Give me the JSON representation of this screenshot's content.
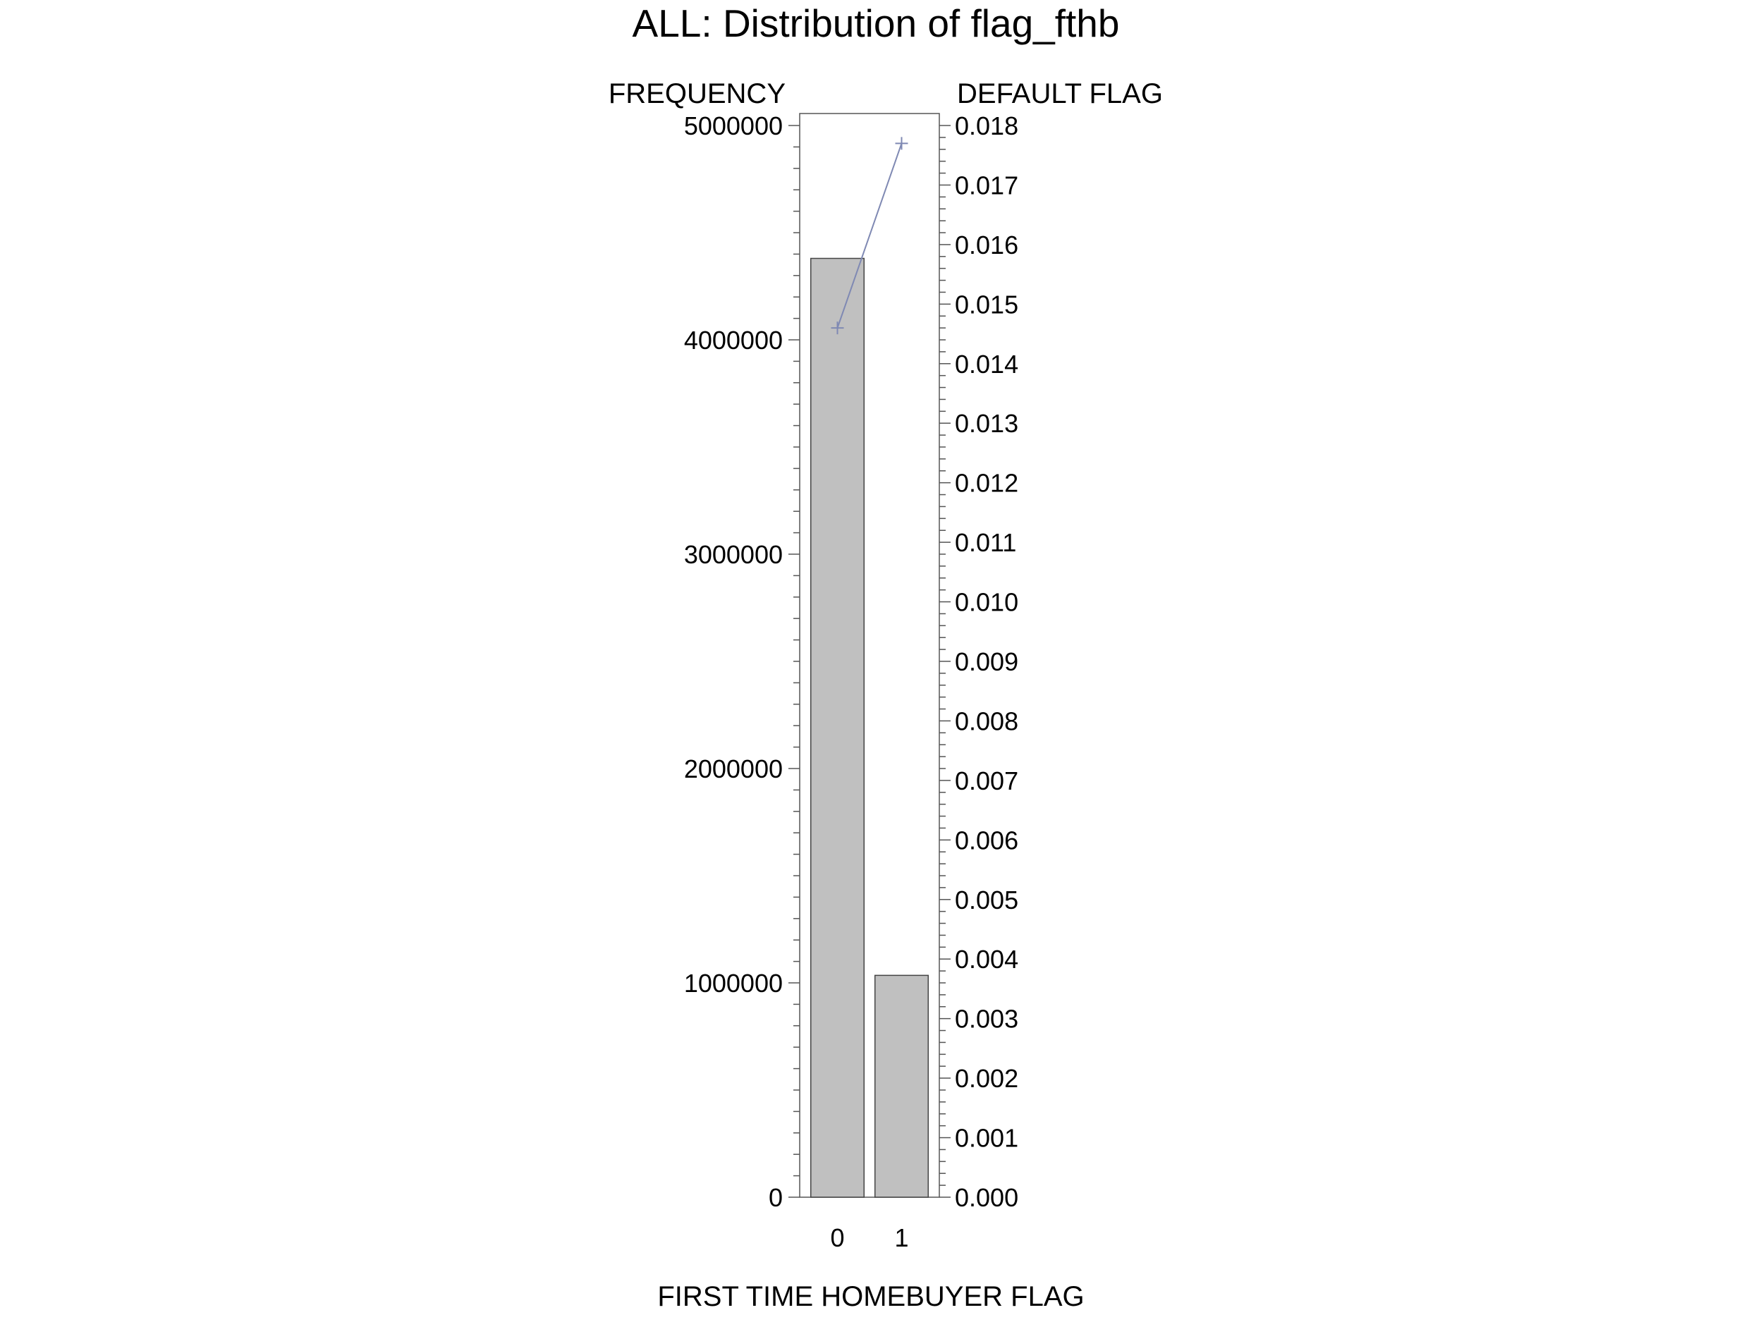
{
  "chart_data": {
    "type": "bar",
    "title": "ALL: Distribution of flag_fthb",
    "xlabel": "FIRST TIME HOMEBUYER FLAG",
    "ylabel": "FREQUENCY",
    "y2label": "DEFAULT FLAG",
    "categories": [
      "0",
      "1"
    ],
    "series": [
      {
        "kind": "bar",
        "axis": "left",
        "values": [
          4380000,
          1035000
        ]
      },
      {
        "kind": "line",
        "axis": "right",
        "marker": "plus",
        "values": [
          0.0146,
          0.0177
        ]
      }
    ],
    "ylim": [
      0,
      5000000
    ],
    "y2lim": [
      0,
      0.018
    ],
    "yticks": [
      "0",
      "1000000",
      "2000000",
      "3000000",
      "4000000",
      "5000000"
    ],
    "y2ticks": [
      "0.000",
      "0.001",
      "0.002",
      "0.003",
      "0.004",
      "0.005",
      "0.006",
      "0.007",
      "0.008",
      "0.009",
      "0.010",
      "0.011",
      "0.012",
      "0.013",
      "0.014",
      "0.015",
      "0.016",
      "0.017",
      "0.018"
    ],
    "grid": false,
    "colors": {
      "bar_fill": "#c0c0c0",
      "bar_stroke": "#444444",
      "line": "#7f89b3",
      "axis": "#555555",
      "text": "#000000"
    }
  }
}
